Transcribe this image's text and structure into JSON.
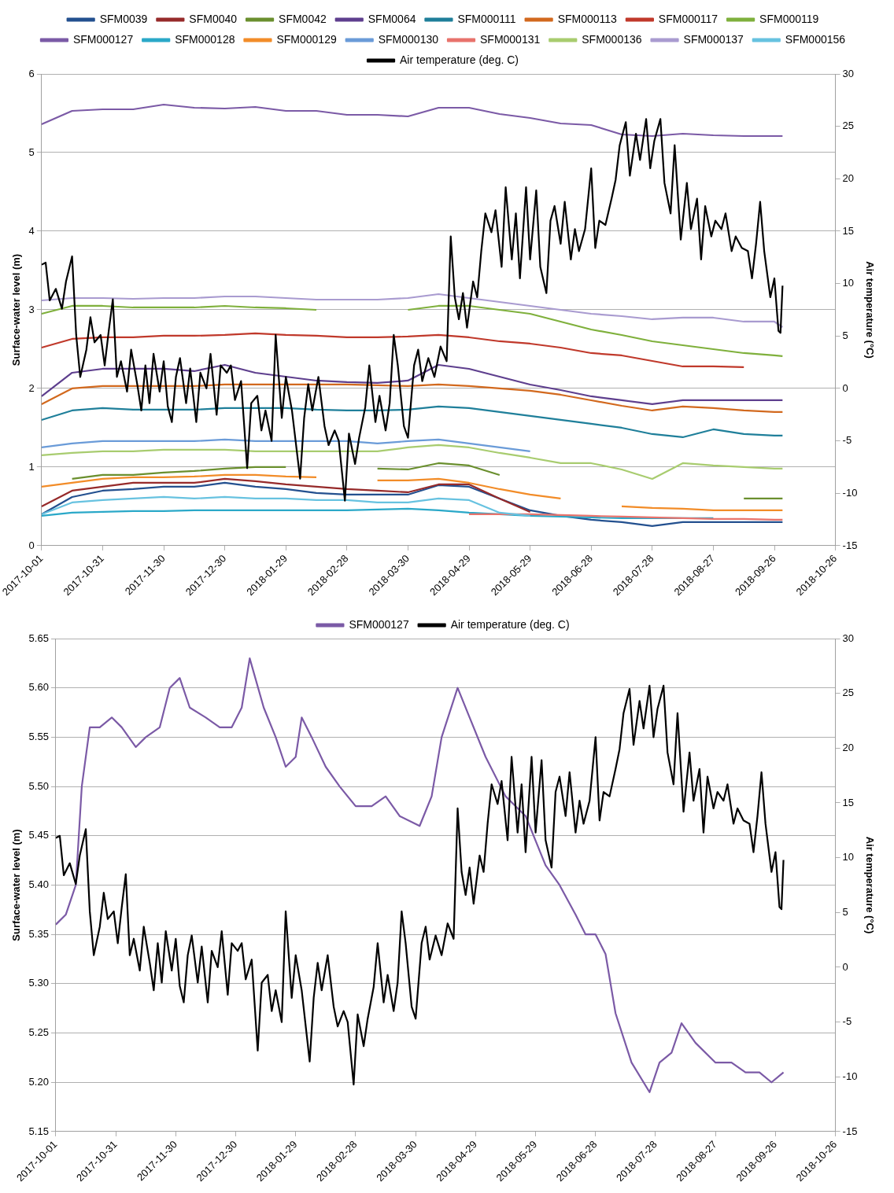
{
  "chart_data": [
    {
      "type": "line",
      "ylabel": "Surface-water level (m)",
      "y2label": "Air temperature (°C)",
      "x": [
        "2017-10-01",
        "2017-10-16",
        "2017-10-31",
        "2017-11-15",
        "2017-11-30",
        "2017-12-15",
        "2017-12-30",
        "2018-01-14",
        "2018-01-29",
        "2018-02-13",
        "2018-02-28",
        "2018-03-15",
        "2018-03-30",
        "2018-04-14",
        "2018-04-29",
        "2018-05-14",
        "2018-05-29",
        "2018-06-13",
        "2018-06-28",
        "2018-07-13",
        "2018-07-28",
        "2018-08-12",
        "2018-08-27",
        "2018-09-11",
        "2018-09-26",
        "2018-09-30"
      ],
      "xlim": [
        "2017-10-01",
        "2018-10-26"
      ],
      "xticks": [
        "2017-10-01",
        "2017-10-31",
        "2017-11-30",
        "2017-12-30",
        "2018-01-29",
        "2018-02-28",
        "2018-03-30",
        "2018-04-29",
        "2018-05-29",
        "2018-06-28",
        "2018-07-28",
        "2018-08-27",
        "2018-09-26",
        "2018-10-26"
      ],
      "ylim": [
        0,
        6
      ],
      "yticks": [
        0,
        1,
        2,
        3,
        4,
        5,
        6
      ],
      "y2lim": [
        -15,
        30
      ],
      "y2ticks": [
        -15,
        -10,
        -5,
        0,
        5,
        10,
        15,
        20,
        25,
        30
      ],
      "grid": "y",
      "legend": "top",
      "marker": "none",
      "series": [
        {
          "name": "SFM0039",
          "color": "#23508f",
          "values": [
            0.4,
            0.62,
            0.7,
            0.72,
            0.75,
            0.75,
            0.8,
            0.75,
            0.72,
            0.67,
            0.65,
            0.65,
            0.65,
            0.77,
            0.75,
            0.6,
            0.45,
            0.38,
            0.33,
            0.3,
            0.25,
            0.3,
            0.3,
            0.3,
            0.3,
            0.3
          ]
        },
        {
          "name": "SFM0040",
          "color": "#962a2a",
          "values": [
            0.5,
            0.7,
            0.75,
            0.8,
            0.8,
            0.8,
            0.85,
            0.82,
            0.78,
            0.75,
            0.72,
            0.7,
            0.68,
            0.78,
            0.78,
            0.6,
            0.43,
            null,
            null,
            null,
            null,
            null,
            null,
            null,
            null,
            null
          ]
        },
        {
          "name": "SFM0042",
          "color": "#6a8f2e",
          "values": [
            null,
            0.85,
            0.9,
            0.9,
            0.93,
            0.95,
            0.98,
            1.0,
            1.0,
            null,
            null,
            0.98,
            0.97,
            1.05,
            1.02,
            0.9,
            null,
            null,
            null,
            null,
            null,
            null,
            null,
            0.6,
            0.6,
            0.6
          ]
        },
        {
          "name": "SFM0064",
          "color": "#5e3f8e",
          "values": [
            1.9,
            2.2,
            2.25,
            2.25,
            2.25,
            2.22,
            2.3,
            2.2,
            2.15,
            2.1,
            2.08,
            2.07,
            2.1,
            2.3,
            2.25,
            2.15,
            2.05,
            1.98,
            1.9,
            1.85,
            1.8,
            1.85,
            1.85,
            1.85,
            1.85,
            1.85
          ]
        },
        {
          "name": "SFM000111",
          "color": "#1f7f9a",
          "values": [
            1.6,
            1.72,
            1.75,
            1.73,
            1.73,
            1.73,
            1.75,
            1.75,
            1.75,
            1.73,
            1.72,
            1.72,
            1.73,
            1.77,
            1.75,
            1.7,
            1.65,
            1.6,
            1.55,
            1.5,
            1.42,
            1.38,
            1.48,
            1.42,
            1.4,
            1.4
          ]
        },
        {
          "name": "SFM000113",
          "color": "#d2691e",
          "values": [
            1.8,
            2.0,
            2.03,
            2.03,
            2.03,
            2.03,
            2.05,
            2.05,
            2.05,
            2.05,
            2.05,
            2.04,
            2.03,
            2.05,
            2.03,
            2.0,
            1.97,
            1.92,
            1.85,
            1.78,
            1.72,
            1.77,
            1.75,
            1.72,
            1.7,
            1.7
          ]
        },
        {
          "name": "SFM000117",
          "color": "#c0392b",
          "values": [
            2.52,
            2.63,
            2.65,
            2.65,
            2.67,
            2.67,
            2.68,
            2.7,
            2.68,
            2.67,
            2.65,
            2.65,
            2.66,
            2.68,
            2.65,
            2.6,
            2.57,
            2.52,
            2.45,
            2.42,
            2.35,
            2.28,
            2.28,
            2.27,
            null,
            null
          ]
        },
        {
          "name": "SFM000119",
          "color": "#7fb03c",
          "values": [
            2.95,
            3.05,
            3.05,
            3.03,
            3.03,
            3.03,
            3.05,
            3.03,
            3.02,
            3.0,
            null,
            null,
            3.0,
            3.05,
            3.05,
            3.0,
            2.95,
            2.85,
            2.75,
            2.68,
            2.6,
            2.55,
            2.5,
            2.45,
            2.42,
            2.41
          ]
        },
        {
          "name": "SFM000127",
          "color": "#7b5aa6",
          "values": [
            5.36,
            5.53,
            5.55,
            5.55,
            5.61,
            5.57,
            5.56,
            5.58,
            5.53,
            5.53,
            5.48,
            5.48,
            5.46,
            5.57,
            5.57,
            5.49,
            5.44,
            5.37,
            5.35,
            5.23,
            5.21,
            5.24,
            5.22,
            5.21,
            5.21,
            5.21
          ]
        },
        {
          "name": "SFM000128",
          "color": "#2aa8c8",
          "values": [
            0.38,
            0.42,
            0.43,
            0.44,
            0.44,
            0.45,
            0.45,
            0.45,
            0.45,
            0.45,
            0.45,
            0.46,
            0.47,
            0.45,
            0.42,
            0.4,
            0.38,
            0.37,
            0.36,
            0.35,
            0.35,
            0.35,
            0.35,
            null,
            null,
            null
          ]
        },
        {
          "name": "SFM000129",
          "color": "#f28c28",
          "values": [
            0.75,
            0.8,
            0.85,
            0.87,
            0.87,
            0.88,
            0.9,
            0.9,
            0.88,
            0.87,
            null,
            0.83,
            0.83,
            0.85,
            0.8,
            0.72,
            0.65,
            0.6,
            null,
            0.5,
            0.48,
            0.47,
            0.45,
            0.45,
            0.45,
            0.45
          ]
        },
        {
          "name": "SFM000130",
          "color": "#6a9bd8",
          "values": [
            1.25,
            1.3,
            1.33,
            1.33,
            1.33,
            1.33,
            1.35,
            1.33,
            1.33,
            1.33,
            1.33,
            1.3,
            1.33,
            1.35,
            1.3,
            1.25,
            1.2,
            null,
            null,
            null,
            null,
            null,
            null,
            null,
            null,
            null
          ]
        },
        {
          "name": "SFM000131",
          "color": "#e8736c",
          "values": [
            null,
            null,
            null,
            null,
            null,
            null,
            null,
            null,
            null,
            null,
            null,
            null,
            null,
            null,
            0.4,
            0.4,
            0.4,
            0.39,
            0.38,
            0.37,
            0.36,
            0.35,
            0.34,
            0.34,
            0.33,
            0.33
          ]
        },
        {
          "name": "SFM000136",
          "color": "#a8cc6f",
          "values": [
            1.15,
            1.18,
            1.2,
            1.2,
            1.22,
            1.22,
            1.22,
            1.2,
            1.2,
            1.2,
            1.2,
            1.2,
            1.25,
            1.28,
            1.25,
            1.18,
            1.12,
            1.05,
            1.05,
            0.97,
            0.85,
            1.05,
            1.02,
            1.0,
            0.98,
            0.98
          ]
        },
        {
          "name": "SFM000137",
          "color": "#a99bd0",
          "values": [
            3.12,
            3.15,
            3.15,
            3.14,
            3.15,
            3.15,
            3.17,
            3.17,
            3.15,
            3.13,
            3.13,
            3.13,
            3.15,
            3.2,
            3.15,
            3.1,
            3.05,
            3.0,
            2.95,
            2.92,
            2.88,
            2.9,
            2.9,
            2.85,
            2.85,
            2.78
          ]
        },
        {
          "name": "SFM000156",
          "color": "#67c2e0",
          "values": [
            0.4,
            0.55,
            0.58,
            0.6,
            0.62,
            0.6,
            0.62,
            0.6,
            0.6,
            0.58,
            0.58,
            0.55,
            0.55,
            0.6,
            0.58,
            0.42,
            0.38,
            null,
            null,
            null,
            null,
            null,
            null,
            null,
            null,
            null
          ]
        },
        {
          "name": "Air temperature (deg. C)",
          "color": "#000000",
          "axis": "y2",
          "x": [
            "2017-10-01",
            "2017-10-03",
            "2017-10-05",
            "2017-10-08",
            "2017-10-11",
            "2017-10-13",
            "2017-10-16",
            "2017-10-18",
            "2017-10-20",
            "2017-10-23",
            "2017-10-25",
            "2017-10-27",
            "2017-10-30",
            "2017-11-01",
            "2017-11-03",
            "2017-11-05",
            "2017-11-07",
            "2017-11-09",
            "2017-11-12",
            "2017-11-14",
            "2017-11-17",
            "2017-11-19",
            "2017-11-21",
            "2017-11-23",
            "2017-11-25",
            "2017-11-28",
            "2017-11-30",
            "2017-12-02",
            "2017-12-04",
            "2017-12-06",
            "2017-12-08",
            "2017-12-11",
            "2017-12-13",
            "2017-12-16",
            "2017-12-18",
            "2017-12-21",
            "2017-12-23",
            "2017-12-26",
            "2017-12-28",
            "2017-12-31",
            "2018-01-02",
            "2018-01-04",
            "2018-01-07",
            "2018-01-10",
            "2018-01-12",
            "2018-01-15",
            "2018-01-17",
            "2018-01-19",
            "2018-01-22",
            "2018-01-24",
            "2018-01-27",
            "2018-01-29",
            "2018-02-01",
            "2018-02-05",
            "2018-02-07",
            "2018-02-09",
            "2018-02-11",
            "2018-02-14",
            "2018-02-17",
            "2018-02-19",
            "2018-02-22",
            "2018-02-24",
            "2018-02-27",
            "2018-03-01",
            "2018-03-04",
            "2018-03-06",
            "2018-03-09",
            "2018-03-11",
            "2018-03-14",
            "2018-03-16",
            "2018-03-19",
            "2018-03-21",
            "2018-03-23",
            "2018-03-25",
            "2018-03-28",
            "2018-03-30",
            "2018-04-02",
            "2018-04-04",
            "2018-04-06",
            "2018-04-09",
            "2018-04-12",
            "2018-04-15",
            "2018-04-18",
            "2018-04-20",
            "2018-04-22",
            "2018-04-24",
            "2018-04-26",
            "2018-04-28",
            "2018-05-01",
            "2018-05-03",
            "2018-05-05",
            "2018-05-07",
            "2018-05-10",
            "2018-05-12",
            "2018-05-15",
            "2018-05-17",
            "2018-05-20",
            "2018-05-22",
            "2018-05-24",
            "2018-05-27",
            "2018-05-29",
            "2018-06-01",
            "2018-06-03",
            "2018-06-06",
            "2018-06-08",
            "2018-06-10",
            "2018-06-13",
            "2018-06-15",
            "2018-06-18",
            "2018-06-20",
            "2018-06-22",
            "2018-06-25",
            "2018-06-28",
            "2018-06-30",
            "2018-07-02",
            "2018-07-05",
            "2018-07-08",
            "2018-07-10",
            "2018-07-12",
            "2018-07-15",
            "2018-07-17",
            "2018-07-20",
            "2018-07-22",
            "2018-07-25",
            "2018-07-27",
            "2018-07-29",
            "2018-08-01",
            "2018-08-03",
            "2018-08-06",
            "2018-08-08",
            "2018-08-11",
            "2018-08-14",
            "2018-08-16",
            "2018-08-19",
            "2018-08-21",
            "2018-08-23",
            "2018-08-26",
            "2018-08-28",
            "2018-08-31",
            "2018-09-02",
            "2018-09-05",
            "2018-09-07",
            "2018-09-10",
            "2018-09-13",
            "2018-09-15",
            "2018-09-17",
            "2018-09-19",
            "2018-09-21",
            "2018-09-24",
            "2018-09-26",
            "2018-09-28",
            "2018-09-29",
            "2018-09-30"
          ],
          "values": [
            11.8,
            12,
            8.4,
            9.5,
            7.6,
            10.2,
            12.6,
            5.1,
            1.1,
            3.7,
            6.8,
            4.4,
            5.1,
            2.2,
            5.5,
            8.5,
            1.1,
            2.6,
            -0.3,
            3.7,
            0.4,
            -2.1,
            2.2,
            -1.4,
            3.3,
            -0.3,
            2.6,
            -1.7,
            -3.2,
            1.1,
            2.9,
            -1.4,
            1.9,
            -3.2,
            1.5,
            0,
            3.3,
            -2.5,
            2.2,
            1.5,
            2.2,
            -1.1,
            0.7,
            -7.6,
            -1.4,
            -0.7,
            -4,
            -2.1,
            -5,
            5.1,
            -2.8,
            1.1,
            -2.1,
            -8.6,
            -2.8,
            0.4,
            -2.1,
            1.1,
            -3.6,
            -5.4,
            -4,
            -5,
            -10.7,
            -4.3,
            -7.2,
            -4.7,
            -1.8,
            2.2,
            -3.2,
            -0.7,
            -4,
            -1.4,
            5.1,
            2.2,
            -3.6,
            -4.7,
            2.2,
            3.7,
            0.7,
            2.9,
            1.1,
            4,
            2.6,
            14.5,
            8.7,
            6.6,
            9.1,
            5.8,
            10.2,
            8.7,
            13.1,
            16.7,
            14.9,
            17,
            11.6,
            19.2,
            12.3,
            16.7,
            10.5,
            19.2,
            12.3,
            18.9,
            11.6,
            9.1,
            16,
            17.4,
            13.8,
            17.8,
            12.3,
            15.2,
            13.1,
            15.2,
            21,
            13.4,
            16,
            15.6,
            18.1,
            19.9,
            23.2,
            25.4,
            20.3,
            24.3,
            21.8,
            25.7,
            21,
            23.6,
            25.7,
            19.6,
            16.7,
            23.2,
            14.2,
            19.6,
            15.2,
            18.1,
            12.3,
            17.4,
            14.5,
            16,
            15.2,
            16.7,
            13.1,
            14.5,
            13.4,
            13.1,
            10.5,
            13.8,
            17.8,
            13.1,
            8.7,
            10.5,
            5.5,
            5.3,
            9.8
          ]
        }
      ]
    },
    {
      "type": "line",
      "ylabel": "Surface-water level (m)",
      "y2label": "Air temperature (°C)",
      "xlim": [
        "2017-10-01",
        "2018-10-26"
      ],
      "xticks": [
        "2017-10-01",
        "2017-10-31",
        "2017-11-30",
        "2017-12-30",
        "2018-01-29",
        "2018-02-28",
        "2018-03-30",
        "2018-04-29",
        "2018-05-29",
        "2018-06-28",
        "2018-07-28",
        "2018-08-27",
        "2018-09-26",
        "2018-10-26"
      ],
      "ylim": [
        5.15,
        5.65
      ],
      "yticks": [
        5.15,
        {
          "value": 5.2,
          "label": "5.20"
        },
        5.25,
        {
          "value": 5.3,
          "label": "5.30"
        },
        5.35,
        {
          "value": 5.4,
          "label": "5.40"
        },
        5.45,
        {
          "value": 5.5,
          "label": "5.50"
        },
        5.55,
        {
          "value": 5.6,
          "label": "5.60"
        },
        5.65
      ],
      "y2lim": [
        -15,
        30
      ],
      "y2ticks": [
        -15,
        -10,
        -5,
        0,
        5,
        10,
        15,
        20,
        25,
        30
      ],
      "grid": "y",
      "legend": "top",
      "marker": "none",
      "series": [
        {
          "name": "SFM000127",
          "color": "#7b5aa6",
          "x": [
            "2017-10-01",
            "2017-10-06",
            "2017-10-11",
            "2017-10-14",
            "2017-10-18",
            "2017-10-23",
            "2017-10-29",
            "2017-11-03",
            "2017-11-10",
            "2017-11-15",
            "2017-11-22",
            "2017-11-27",
            "2017-12-02",
            "2017-12-07",
            "2017-12-15",
            "2017-12-22",
            "2017-12-28",
            "2018-01-02",
            "2018-01-06",
            "2018-01-13",
            "2018-01-19",
            "2018-01-24",
            "2018-01-29",
            "2018-02-01",
            "2018-02-06",
            "2018-02-13",
            "2018-02-20",
            "2018-02-28",
            "2018-03-08",
            "2018-03-15",
            "2018-03-22",
            "2018-04-01",
            "2018-04-07",
            "2018-04-12",
            "2018-04-20",
            "2018-04-26",
            "2018-05-04",
            "2018-05-14",
            "2018-05-24",
            "2018-06-03",
            "2018-06-10",
            "2018-06-18",
            "2018-06-23",
            "2018-06-28",
            "2018-07-03",
            "2018-07-08",
            "2018-07-16",
            "2018-07-25",
            "2018-07-30",
            "2018-08-05",
            "2018-08-10",
            "2018-08-17",
            "2018-08-27",
            "2018-09-04",
            "2018-09-11",
            "2018-09-18",
            "2018-09-24",
            "2018-09-30"
          ],
          "values": [
            5.36,
            5.37,
            5.4,
            5.5,
            5.56,
            5.56,
            5.57,
            5.56,
            5.54,
            5.55,
            5.56,
            5.6,
            5.61,
            5.58,
            5.57,
            5.56,
            5.56,
            5.58,
            5.63,
            5.58,
            5.55,
            5.52,
            5.53,
            5.57,
            5.55,
            5.52,
            5.5,
            5.48,
            5.48,
            5.49,
            5.47,
            5.46,
            5.49,
            5.55,
            5.6,
            5.57,
            5.53,
            5.49,
            5.47,
            5.42,
            5.4,
            5.37,
            5.35,
            5.35,
            5.33,
            5.27,
            5.22,
            5.19,
            5.22,
            5.23,
            5.26,
            5.24,
            5.22,
            5.22,
            5.21,
            5.21,
            5.2,
            5.21
          ]
        },
        {
          "name": "Air temperature (deg. C)",
          "color": "#000000",
          "axis": "y2",
          "x": [
            "2017-10-01",
            "2017-10-03",
            "2017-10-05",
            "2017-10-08",
            "2017-10-11",
            "2017-10-13",
            "2017-10-16",
            "2017-10-18",
            "2017-10-20",
            "2017-10-23",
            "2017-10-25",
            "2017-10-27",
            "2017-10-30",
            "2017-11-01",
            "2017-11-03",
            "2017-11-05",
            "2017-11-07",
            "2017-11-09",
            "2017-11-12",
            "2017-11-14",
            "2017-11-17",
            "2017-11-19",
            "2017-11-21",
            "2017-11-23",
            "2017-11-25",
            "2017-11-28",
            "2017-11-30",
            "2017-12-02",
            "2017-12-04",
            "2017-12-06",
            "2017-12-08",
            "2017-12-11",
            "2017-12-13",
            "2017-12-16",
            "2017-12-18",
            "2017-12-21",
            "2017-12-23",
            "2017-12-26",
            "2017-12-28",
            "2017-12-31",
            "2018-01-02",
            "2018-01-04",
            "2018-01-07",
            "2018-01-10",
            "2018-01-12",
            "2018-01-15",
            "2018-01-17",
            "2018-01-19",
            "2018-01-22",
            "2018-01-24",
            "2018-01-27",
            "2018-01-29",
            "2018-02-01",
            "2018-02-05",
            "2018-02-07",
            "2018-02-09",
            "2018-02-11",
            "2018-02-14",
            "2018-02-17",
            "2018-02-19",
            "2018-02-22",
            "2018-02-24",
            "2018-02-27",
            "2018-03-01",
            "2018-03-04",
            "2018-03-06",
            "2018-03-09",
            "2018-03-11",
            "2018-03-14",
            "2018-03-16",
            "2018-03-19",
            "2018-03-21",
            "2018-03-23",
            "2018-03-25",
            "2018-03-28",
            "2018-03-30",
            "2018-04-02",
            "2018-04-04",
            "2018-04-06",
            "2018-04-09",
            "2018-04-12",
            "2018-04-15",
            "2018-04-18",
            "2018-04-20",
            "2018-04-22",
            "2018-04-24",
            "2018-04-26",
            "2018-04-28",
            "2018-05-01",
            "2018-05-03",
            "2018-05-05",
            "2018-05-07",
            "2018-05-10",
            "2018-05-12",
            "2018-05-15",
            "2018-05-17",
            "2018-05-20",
            "2018-05-22",
            "2018-05-24",
            "2018-05-27",
            "2018-05-29",
            "2018-06-01",
            "2018-06-03",
            "2018-06-06",
            "2018-06-08",
            "2018-06-10",
            "2018-06-13",
            "2018-06-15",
            "2018-06-18",
            "2018-06-20",
            "2018-06-22",
            "2018-06-25",
            "2018-06-28",
            "2018-06-30",
            "2018-07-02",
            "2018-07-05",
            "2018-07-08",
            "2018-07-10",
            "2018-07-12",
            "2018-07-15",
            "2018-07-17",
            "2018-07-20",
            "2018-07-22",
            "2018-07-25",
            "2018-07-27",
            "2018-07-29",
            "2018-08-01",
            "2018-08-03",
            "2018-08-06",
            "2018-08-08",
            "2018-08-11",
            "2018-08-14",
            "2018-08-16",
            "2018-08-19",
            "2018-08-21",
            "2018-08-23",
            "2018-08-26",
            "2018-08-28",
            "2018-08-31",
            "2018-09-02",
            "2018-09-05",
            "2018-09-07",
            "2018-09-10",
            "2018-09-13",
            "2018-09-15",
            "2018-09-17",
            "2018-09-19",
            "2018-09-21",
            "2018-09-24",
            "2018-09-26",
            "2018-09-28",
            "2018-09-29",
            "2018-09-30"
          ],
          "values": [
            11.8,
            12,
            8.4,
            9.5,
            7.6,
            10.2,
            12.6,
            5.1,
            1.1,
            3.7,
            6.8,
            4.4,
            5.1,
            2.2,
            5.5,
            8.5,
            1.1,
            2.6,
            -0.3,
            3.7,
            0.4,
            -2.1,
            2.2,
            -1.4,
            3.3,
            -0.3,
            2.6,
            -1.7,
            -3.2,
            1.1,
            2.9,
            -1.4,
            1.9,
            -3.2,
            1.5,
            0,
            3.3,
            -2.5,
            2.2,
            1.5,
            2.2,
            -1.1,
            0.7,
            -7.6,
            -1.4,
            -0.7,
            -4,
            -2.1,
            -5,
            5.1,
            -2.8,
            1.1,
            -2.1,
            -8.6,
            -2.8,
            0.4,
            -2.1,
            1.1,
            -3.6,
            -5.4,
            -4,
            -5,
            -10.7,
            -4.3,
            -7.2,
            -4.7,
            -1.8,
            2.2,
            -3.2,
            -0.7,
            -4,
            -1.4,
            5.1,
            2.2,
            -3.6,
            -4.7,
            2.2,
            3.7,
            0.7,
            2.9,
            1.1,
            4,
            2.6,
            14.5,
            8.7,
            6.6,
            9.1,
            5.8,
            10.2,
            8.7,
            13.1,
            16.7,
            14.9,
            17,
            11.6,
            19.2,
            12.3,
            16.7,
            10.5,
            19.2,
            12.3,
            18.9,
            11.6,
            9.1,
            16,
            17.4,
            13.8,
            17.8,
            12.3,
            15.2,
            13.1,
            15.2,
            21,
            13.4,
            16,
            15.6,
            18.1,
            19.9,
            23.2,
            25.4,
            20.3,
            24.3,
            21.8,
            25.7,
            21,
            23.6,
            25.7,
            19.6,
            16.7,
            23.2,
            14.2,
            19.6,
            15.2,
            18.1,
            12.3,
            17.4,
            14.5,
            16,
            15.2,
            16.7,
            13.1,
            14.5,
            13.4,
            13.1,
            10.5,
            13.8,
            17.8,
            13.1,
            8.7,
            10.5,
            5.5,
            5.3,
            9.8
          ]
        }
      ]
    }
  ]
}
